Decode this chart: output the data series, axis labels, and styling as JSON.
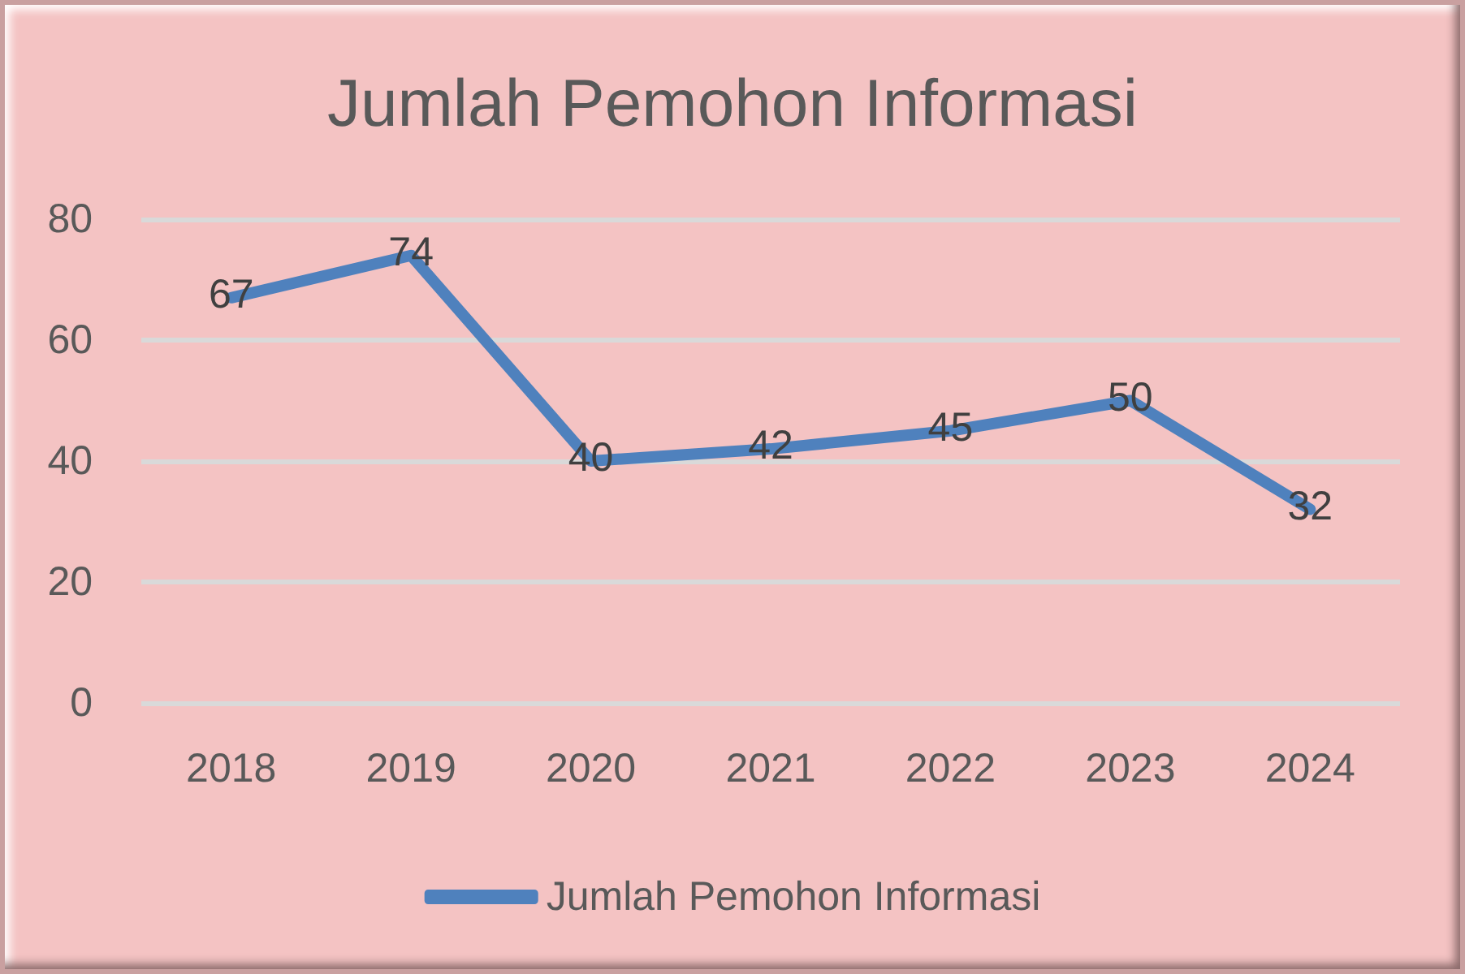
{
  "chart_data": {
    "type": "line",
    "title": "Jumlah Pemohon Informasi",
    "categories": [
      "2018",
      "2019",
      "2020",
      "2021",
      "2022",
      "2023",
      "2024"
    ],
    "series": [
      {
        "name": "Jumlah Pemohon Informasi",
        "color": "#4f81bd",
        "values": [
          67,
          74,
          40,
          42,
          45,
          50,
          32
        ]
      }
    ],
    "ylim": [
      0,
      80
    ],
    "yticks": [
      0,
      20,
      40,
      60,
      80
    ],
    "grid": "y",
    "legend": "bottom",
    "data_labels": true,
    "marker": "none"
  }
}
